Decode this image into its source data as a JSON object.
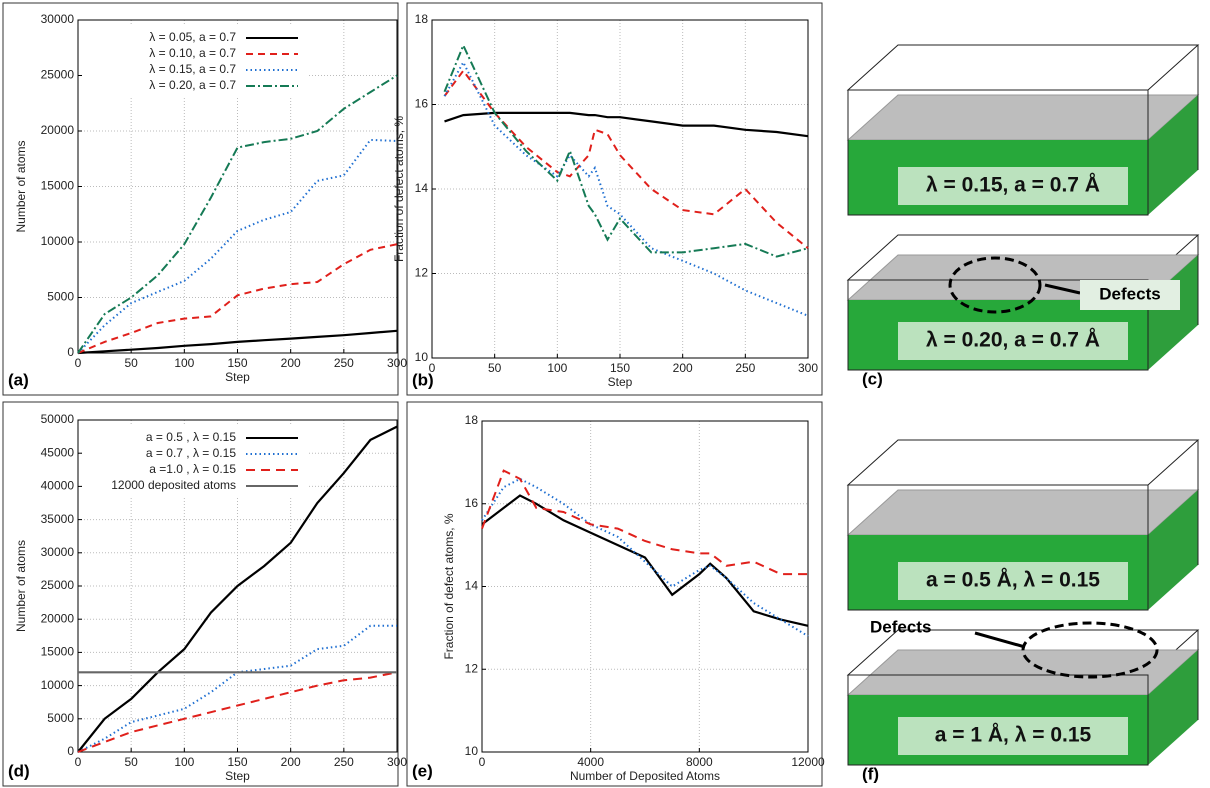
{
  "chart_data": [
    {
      "type": "line",
      "panel_label": "(a)",
      "xlabel": "Step",
      "ylabel": "Number of atoms",
      "xlim": [
        0,
        300
      ],
      "xticks": [
        0,
        50,
        100,
        150,
        200,
        250,
        300
      ],
      "ylim": [
        0,
        30000
      ],
      "yticks": [
        0,
        5000,
        10000,
        15000,
        20000,
        25000,
        30000
      ],
      "grid": true,
      "legend": "top-left",
      "x": [
        0,
        25,
        50,
        75,
        100,
        125,
        150,
        175,
        200,
        225,
        250,
        275,
        300
      ],
      "series": [
        {
          "name": "λ = 0.05, a = 0.7",
          "color": "#000000",
          "dash": "none",
          "values": [
            0,
            150,
            300,
            450,
            650,
            800,
            1000,
            1150,
            1300,
            1450,
            1600,
            1800,
            2000
          ]
        },
        {
          "name": "λ = 0.10, a = 0.7",
          "color": "#e0201b",
          "dash": "7,5",
          "values": [
            0,
            1000,
            1800,
            2700,
            3100,
            3300,
            5200,
            5800,
            6200,
            6400,
            8000,
            9300,
            9800
          ]
        },
        {
          "name": "λ = 0.15, a = 0.7",
          "color": "#1f6fd1",
          "dash": "1.5,3",
          "values": [
            0,
            2500,
            4500,
            5500,
            6500,
            8500,
            11000,
            12000,
            12700,
            15500,
            16000,
            19200,
            19100
          ]
        },
        {
          "name": "λ = 0.20, a = 0.7",
          "color": "#157a55",
          "dash": "9,3,2,3",
          "values": [
            0,
            3500,
            5000,
            7000,
            9800,
            14000,
            18500,
            19000,
            19300,
            20000,
            22000,
            23500,
            25000
          ]
        }
      ]
    },
    {
      "type": "line",
      "panel_label": "(b)",
      "xlabel": "Step",
      "ylabel": "Fraction of defect atoms, %",
      "xlim": [
        0,
        300
      ],
      "xticks": [
        0,
        50,
        100,
        150,
        200,
        250,
        300
      ],
      "ylim": [
        10,
        18
      ],
      "yticks": [
        10,
        12,
        14,
        16,
        18
      ],
      "grid": true,
      "x": [
        10,
        25,
        50,
        75,
        100,
        110,
        125,
        130,
        140,
        150,
        175,
        200,
        225,
        250,
        275,
        300
      ],
      "series": [
        {
          "color": "#000000",
          "dash": "none",
          "values": [
            15.6,
            15.75,
            15.8,
            15.8,
            15.8,
            15.8,
            15.75,
            15.75,
            15.7,
            15.7,
            15.6,
            15.5,
            15.5,
            15.4,
            15.35,
            15.25
          ]
        },
        {
          "color": "#e0201b",
          "dash": "7,5",
          "values": [
            16.2,
            16.8,
            15.8,
            15.0,
            14.4,
            14.3,
            14.8,
            15.4,
            15.3,
            14.8,
            14.0,
            13.5,
            13.4,
            14.0,
            13.2,
            12.6
          ]
        },
        {
          "color": "#1f6fd1",
          "dash": "1.5,3",
          "values": [
            16.2,
            17.0,
            15.5,
            14.8,
            14.3,
            14.8,
            14.3,
            14.5,
            13.6,
            13.4,
            12.6,
            12.3,
            12.0,
            11.6,
            11.3,
            11.0
          ]
        },
        {
          "color": "#157a55",
          "dash": "9,3,2,3",
          "values": [
            16.3,
            17.4,
            15.8,
            14.9,
            14.2,
            14.9,
            13.6,
            13.4,
            12.8,
            13.3,
            12.5,
            12.5,
            12.6,
            12.7,
            12.4,
            12.6
          ]
        }
      ]
    },
    {
      "type": "line",
      "panel_label": "(d)",
      "xlabel": "Step",
      "ylabel": "Number of atoms",
      "xlim": [
        0,
        300
      ],
      "xticks": [
        0,
        50,
        100,
        150,
        200,
        250,
        300
      ],
      "ylim": [
        0,
        50000
      ],
      "yticks": [
        0,
        5000,
        10000,
        15000,
        20000,
        25000,
        30000,
        35000,
        40000,
        45000,
        50000
      ],
      "grid": true,
      "legend": "top-left",
      "x": [
        0,
        25,
        50,
        75,
        100,
        125,
        150,
        175,
        200,
        225,
        250,
        275,
        300
      ],
      "series": [
        {
          "name": "a = 0.5 , λ = 0.15",
          "color": "#000000",
          "dash": "none",
          "values": [
            0,
            5000,
            8000,
            12000,
            15500,
            21000,
            25000,
            28000,
            31500,
            37500,
            42000,
            47000,
            49000
          ]
        },
        {
          "name": "a = 0.7 , λ = 0.15",
          "color": "#1f6fd1",
          "dash": "1.5,3",
          "values": [
            0,
            2000,
            4500,
            5500,
            6500,
            9000,
            12000,
            12500,
            13000,
            15500,
            16000,
            19000,
            19000
          ]
        },
        {
          "name": "a =1.0 , λ = 0.15",
          "color": "#e0201b",
          "dash": "9,6",
          "values": [
            0,
            1500,
            3000,
            4000,
            5000,
            6000,
            7000,
            8000,
            9000,
            10000,
            10800,
            11200,
            12000
          ]
        },
        {
          "name": "12000 deposited atoms",
          "color": "#666666",
          "dash": "none",
          "values": [
            12000,
            12000,
            12000,
            12000,
            12000,
            12000,
            12000,
            12000,
            12000,
            12000,
            12000,
            12000,
            12000
          ]
        }
      ]
    },
    {
      "type": "line",
      "panel_label": "(e)",
      "xlabel": "Number of Deposited Atoms",
      "ylabel": "Fraction of defect atoms, %",
      "xlim": [
        0,
        12000
      ],
      "xticks": [
        0,
        4000,
        8000,
        12000
      ],
      "ylim": [
        10,
        18
      ],
      "yticks": [
        10,
        12,
        14,
        16,
        18
      ],
      "grid": true,
      "x": [
        0,
        800,
        1400,
        2000,
        3000,
        4000,
        5000,
        6000,
        7000,
        8000,
        8400,
        9000,
        10000,
        11000,
        12000
      ],
      "series": [
        {
          "color": "#000000",
          "dash": "none",
          "values": [
            15.5,
            15.9,
            16.2,
            16.0,
            15.6,
            15.3,
            15.0,
            14.7,
            13.8,
            14.3,
            14.55,
            14.2,
            13.4,
            13.2,
            13.05
          ]
        },
        {
          "color": "#1f6fd1",
          "dash": "1.5,3",
          "values": [
            15.6,
            16.4,
            16.6,
            16.4,
            16.0,
            15.5,
            15.2,
            14.6,
            14.0,
            14.4,
            14.5,
            14.2,
            13.6,
            13.2,
            12.8
          ]
        },
        {
          "color": "#e0201b",
          "dash": "9,6",
          "values": [
            15.4,
            16.8,
            16.6,
            15.9,
            15.8,
            15.5,
            15.4,
            15.1,
            14.9,
            14.8,
            14.8,
            14.5,
            14.6,
            14.3,
            14.3
          ]
        }
      ]
    }
  ],
  "figure_panels": [
    {
      "panel_label": "(c)",
      "captions": [
        "λ = 0.15, a = 0.7 Å",
        "λ = 0.20, a = 0.7 Å"
      ],
      "annotation": "Defects"
    },
    {
      "panel_label": "(f)",
      "captions": [
        "a = 0.5 Å, λ = 0.15",
        "a = 1 Å, λ = 0.15"
      ],
      "annotation": "Defects"
    }
  ]
}
